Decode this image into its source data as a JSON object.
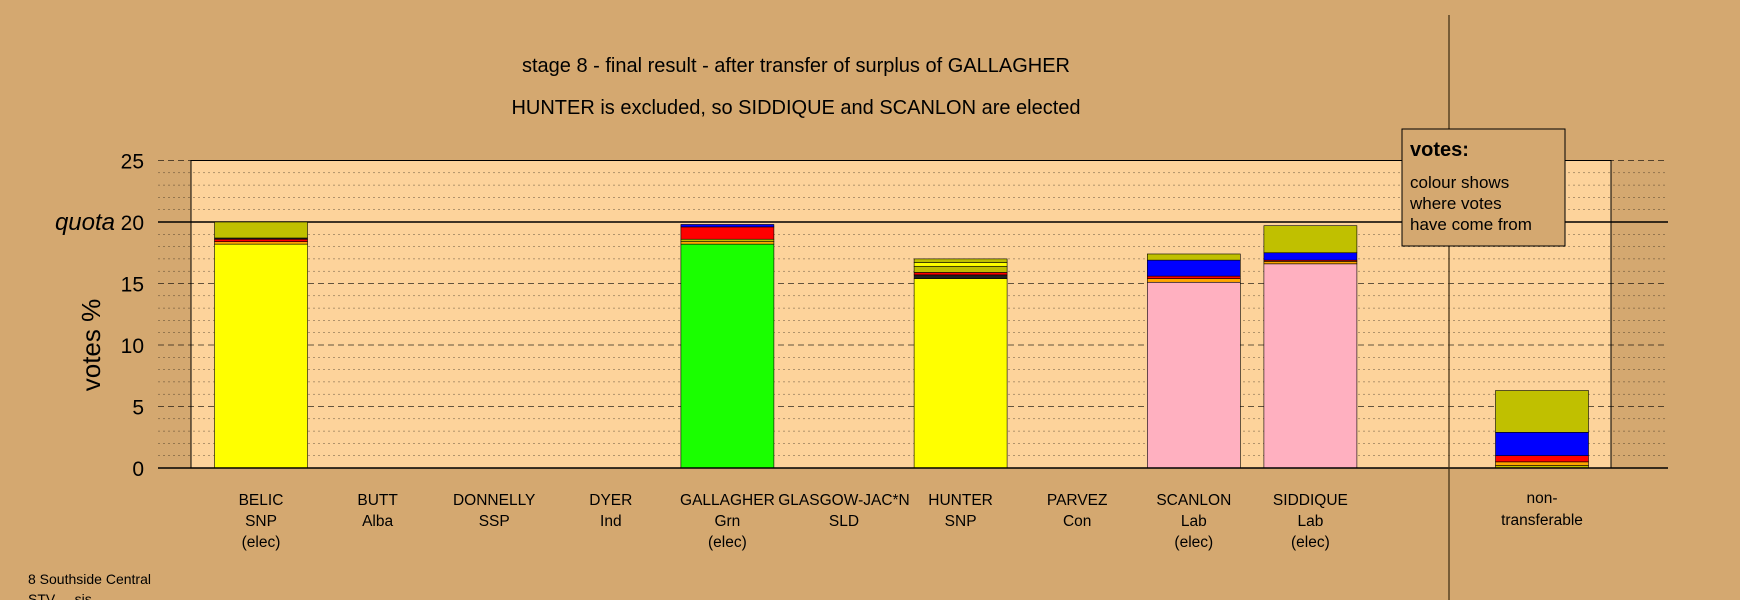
{
  "title": "stage 8 - final result - after transfer of surplus of GALLAGHER",
  "subtitle": "HUNTER is excluded, so SIDDIQUE and SCANLON are elected",
  "footer_lines": [
    "8 Southside Central",
    "STV ... sis"
  ],
  "legend": {
    "heading": "votes:",
    "lines": [
      "colour shows",
      "where votes",
      "have come from"
    ]
  },
  "colors": {
    "background": "#d4a870",
    "plot_background": "#fdd39b",
    "SNP": "#ffff00",
    "Grn": "#1aff00",
    "Lab": "#ffb0c0",
    "Con": "#0000ff",
    "LD_other": "#c0c000",
    "red": "#ff0000",
    "orange": "#ffa500",
    "dark": "#202020"
  },
  "chart_data": {
    "type": "bar",
    "stacked": true,
    "title": "stage 8 - final result - after transfer of surplus of GALLAGHER",
    "subtitle": "HUNTER is excluded, so SIDDIQUE and SCANLON are elected",
    "ylabel": "votes %",
    "ylim": [
      0,
      25
    ],
    "yticks": [
      0,
      5,
      10,
      15,
      20,
      25
    ],
    "quota": 20,
    "quota_label": "quota",
    "grid": true,
    "categories": [
      {
        "name": "BELIC",
        "party": "SNP",
        "note": "(elec)"
      },
      {
        "name": "BUTT",
        "party": "Alba",
        "note": ""
      },
      {
        "name": "DONNELLY",
        "party": "SSP",
        "note": ""
      },
      {
        "name": "DYER",
        "party": "Ind",
        "note": ""
      },
      {
        "name": "GALLAGHER",
        "party": "Grn",
        "note": "(elec)"
      },
      {
        "name": "GLASGOW-JAC*N",
        "party": "SLD",
        "note": ""
      },
      {
        "name": "HUNTER",
        "party": "SNP",
        "note": ""
      },
      {
        "name": "PARVEZ",
        "party": "Con",
        "note": ""
      },
      {
        "name": "SCANLON",
        "party": "Lab",
        "note": "(elec)"
      },
      {
        "name": "SIDDIQUE",
        "party": "Lab",
        "note": "(elec)"
      }
    ],
    "nontransferable": {
      "label_line1": "non-",
      "label_line2": "transferable"
    },
    "stacks": [
      [
        {
          "v": 18.2,
          "c": "SNP"
        },
        {
          "v": 0.2,
          "c": "orange"
        },
        {
          "v": 0.2,
          "c": "red"
        },
        {
          "v": 0.1,
          "c": "dark"
        },
        {
          "v": 1.3,
          "c": "LD_other"
        }
      ],
      [],
      [],
      [],
      [
        {
          "v": 18.2,
          "c": "Grn"
        },
        {
          "v": 0.2,
          "c": "orange"
        },
        {
          "v": 0.2,
          "c": "LD_other"
        },
        {
          "v": 1.0,
          "c": "red"
        },
        {
          "v": 0.2,
          "c": "Con"
        }
      ],
      [],
      [
        {
          "v": 15.4,
          "c": "SNP"
        },
        {
          "v": 0.3,
          "c": "dark"
        },
        {
          "v": 0.2,
          "c": "red"
        },
        {
          "v": 0.5,
          "c": "LD_other"
        },
        {
          "v": 0.3,
          "c": "SNP"
        },
        {
          "v": 0.3,
          "c": "LD_other"
        }
      ],
      [],
      [
        {
          "v": 15.1,
          "c": "Lab"
        },
        {
          "v": 0.3,
          "c": "orange"
        },
        {
          "v": 0.2,
          "c": "red"
        },
        {
          "v": 1.3,
          "c": "Con"
        },
        {
          "v": 0.5,
          "c": "LD_other"
        }
      ],
      [
        {
          "v": 16.6,
          "c": "Lab"
        },
        {
          "v": 0.2,
          "c": "orange"
        },
        {
          "v": 0.1,
          "c": "red"
        },
        {
          "v": 0.6,
          "c": "Con"
        },
        {
          "v": 2.2,
          "c": "LD_other"
        }
      ]
    ],
    "nontransferable_stack": [
      {
        "v": 0.2,
        "c": "LD_other"
      },
      {
        "v": 0.3,
        "c": "orange"
      },
      {
        "v": 0.5,
        "c": "red"
      },
      {
        "v": 1.9,
        "c": "Con"
      },
      {
        "v": 3.4,
        "c": "LD_other"
      }
    ]
  }
}
